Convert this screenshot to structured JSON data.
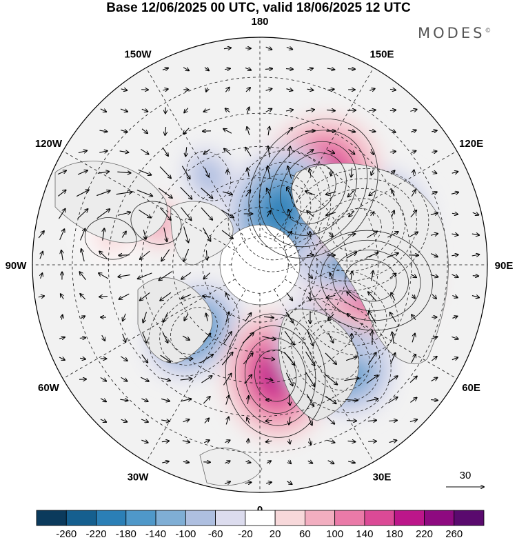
{
  "title": "Base 12/06/2025 00 UTC, valid 18/06/2025 12 UTC",
  "brand": "MODES",
  "brand_mark": "©",
  "longitude_labels": [
    {
      "text": "180",
      "lon": 180
    },
    {
      "text": "150E",
      "lon": 150
    },
    {
      "text": "120E",
      "lon": 120
    },
    {
      "text": "90E",
      "lon": 90
    },
    {
      "text": "60E",
      "lon": 60
    },
    {
      "text": "30E",
      "lon": 30
    },
    {
      "text": "0",
      "lon": 0
    },
    {
      "text": "30W",
      "lon": -30
    },
    {
      "text": "60W",
      "lon": -60
    },
    {
      "text": "90W",
      "lon": -90
    },
    {
      "text": "120W",
      "lon": -120
    },
    {
      "text": "150W",
      "lon": -150
    }
  ],
  "reference_vector_label": "30",
  "colorbar": {
    "ticks": [
      "-260",
      "-220",
      "-180",
      "-140",
      "-100",
      "-60",
      "-20",
      "20",
      "60",
      "100",
      "140",
      "180",
      "220",
      "260"
    ],
    "colors": [
      "#0b3a5c",
      "#155f8f",
      "#2b7fb6",
      "#4f98c9",
      "#7faed5",
      "#aebfe0",
      "#dcdcee",
      "#ffffff",
      "#f7d8da",
      "#f2aec0",
      "#ea7aa8",
      "#db4a96",
      "#bc168a",
      "#8e0a80",
      "#5a0a6e"
    ]
  },
  "anomaly_centers": [
    {
      "lon": 160,
      "lat": 70,
      "value": -200
    },
    {
      "lon": 145,
      "lat": 58,
      "value": 230
    },
    {
      "lon": 110,
      "lat": 55,
      "value": -220
    },
    {
      "lon": 82,
      "lat": 52,
      "value": 200
    },
    {
      "lon": 62,
      "lat": 55,
      "value": -160
    },
    {
      "lon": 40,
      "lat": 50,
      "value": -200
    },
    {
      "lon": 8,
      "lat": 52,
      "value": 190
    },
    {
      "lon": -45,
      "lat": 58,
      "value": -150
    },
    {
      "lon": -112,
      "lat": 52,
      "value": 90
    },
    {
      "lon": -100,
      "lat": 40,
      "value": 60
    },
    {
      "lon": -150,
      "lat": 55,
      "value": -60
    }
  ]
}
